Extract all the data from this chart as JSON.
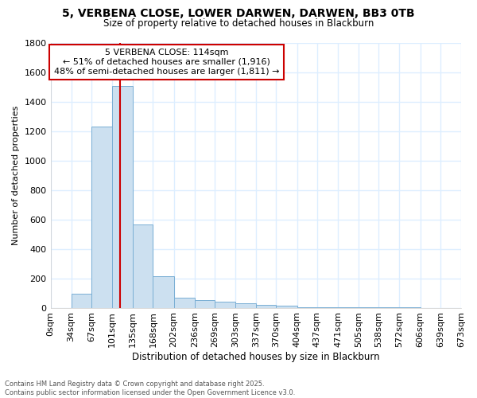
{
  "title_line1": "5, VERBENA CLOSE, LOWER DARWEN, DARWEN, BB3 0TB",
  "title_line2": "Size of property relative to detached houses in Blackburn",
  "xlabel": "Distribution of detached houses by size in Blackburn",
  "ylabel": "Number of detached properties",
  "bin_edges": [
    0,
    34,
    67,
    101,
    135,
    168,
    202,
    236,
    269,
    303,
    337,
    370,
    404,
    437,
    471,
    505,
    538,
    572,
    606,
    639,
    673
  ],
  "bar_heights": [
    0,
    97,
    1230,
    1510,
    565,
    213,
    68,
    50,
    43,
    32,
    22,
    12,
    4,
    3,
    2,
    2,
    1,
    1,
    0,
    0
  ],
  "bar_color": "#cce0f0",
  "bar_edge_color": "#7aafd4",
  "red_line_x": 114,
  "ylim": [
    0,
    1800
  ],
  "yticks": [
    0,
    200,
    400,
    600,
    800,
    1000,
    1200,
    1400,
    1600,
    1800
  ],
  "annotation_text_line1": "5 VERBENA CLOSE: 114sqm",
  "annotation_text_line2": "← 51% of detached houses are smaller (1,916)",
  "annotation_text_line3": "48% of semi-detached houses are larger (1,811) →",
  "annotation_box_color": "#ffffff",
  "annotation_box_edge": "#cc0000",
  "footer_line1": "Contains HM Land Registry data © Crown copyright and database right 2025.",
  "footer_line2": "Contains public sector information licensed under the Open Government Licence v3.0.",
  "background_color": "#ffffff",
  "grid_color": "#ddeeff"
}
